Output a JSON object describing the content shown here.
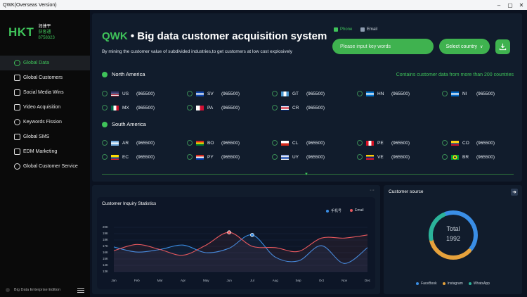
{
  "window": {
    "title": "QWK(Overseas Version)",
    "min": "–",
    "max": "▢",
    "close": "✕"
  },
  "brand": {
    "logo": "HKT",
    "name": "润捷平",
    "tag": "获客通",
    "code": "8758323"
  },
  "menu": [
    {
      "label": "Global Data",
      "active": true
    },
    {
      "label": "Global Customers",
      "active": false
    },
    {
      "label": "Social Media Wins",
      "active": false
    },
    {
      "label": "Video Acquisition",
      "active": false
    },
    {
      "label": "Keywords Fission",
      "active": false
    },
    {
      "label": "Global SMS",
      "active": false
    },
    {
      "label": "EDM Marketing",
      "active": false
    },
    {
      "label": "Global Customer Service",
      "active": false
    }
  ],
  "footer": {
    "label": "Big Data Enterprise Edition"
  },
  "header": {
    "brand": "QWK",
    "sep": " • ",
    "title": "Big data customer acquisition system",
    "subtitle": "By mining the customer value of subdivided industries,to get customers at low cost explosively",
    "phone_label": "Phone",
    "email_label": "Email",
    "search_placeholder": "Please input key words",
    "country_label": "Select country",
    "country_chevron": "∨"
  },
  "regions": {
    "north": {
      "name": "North America",
      "note": "Contains customer data from more than 200 countries",
      "countries": [
        {
          "code": "US",
          "count": "(965500)"
        },
        {
          "code": "SV",
          "count": "(965500)"
        },
        {
          "code": "GT",
          "count": "(965500)"
        },
        {
          "code": "HN",
          "count": "(965500)"
        },
        {
          "code": "NI",
          "count": "(965500)"
        },
        {
          "code": "MX",
          "count": "(965500)"
        },
        {
          "code": "PA",
          "count": "(965500)"
        },
        {
          "code": "CR",
          "count": "(965500)"
        }
      ]
    },
    "south": {
      "name": "South America",
      "countries": [
        {
          "code": "AR",
          "count": "(965500)"
        },
        {
          "code": "BO",
          "count": "(965500)"
        },
        {
          "code": "CL",
          "count": "(965500)"
        },
        {
          "code": "PE",
          "count": "(965500)"
        },
        {
          "code": "CO",
          "count": "(965500)"
        },
        {
          "code": "EC",
          "count": "(965500)"
        },
        {
          "code": "PY",
          "count": "(965500)"
        },
        {
          "code": "UY",
          "count": "(965500)"
        },
        {
          "code": "VE",
          "count": "(965500)"
        },
        {
          "code": "BR",
          "count": "(965500)"
        }
      ]
    }
  },
  "inquiry": {
    "more": "···",
    "title": "Customer Inquiry Statistics",
    "legend_phone": "手机号",
    "legend_email": "Email"
  },
  "source": {
    "title": "Customer source",
    "total_label": "Total",
    "total_value": "1992",
    "legend": [
      "FaceBook",
      "Instagram",
      "WhatsApp"
    ],
    "colors": [
      "#3a8ee6",
      "#e6a23c",
      "#2bb39a"
    ],
    "shares": [
      0.43,
      0.35,
      0.22
    ]
  },
  "chart_data": {
    "type": "line",
    "title": "Customer Inquiry Statistics",
    "categories": [
      "Jan",
      "Feb",
      "Mar",
      "Apr",
      "May",
      "Jun",
      "Jul",
      "Aug",
      "Sep",
      "Oct",
      "Nov",
      "Dec"
    ],
    "y_ticks": [
      "20K",
      "19K",
      "18K",
      "17K",
      "16K",
      "15K",
      "14K",
      "13K"
    ],
    "ylim": [
      13000,
      20000
    ],
    "series": [
      {
        "name": "手机号",
        "color": "#3a8ee6",
        "values": [
          16900,
          16100,
          16500,
          17200,
          16000,
          16700,
          18800,
          15300,
          14700,
          17100,
          14300,
          16800
        ]
      },
      {
        "name": "Email",
        "color": "#e8585e",
        "values": [
          16300,
          17300,
          16500,
          15600,
          17200,
          19200,
          17000,
          16800,
          16200,
          18300,
          18300,
          18800
        ]
      }
    ]
  }
}
